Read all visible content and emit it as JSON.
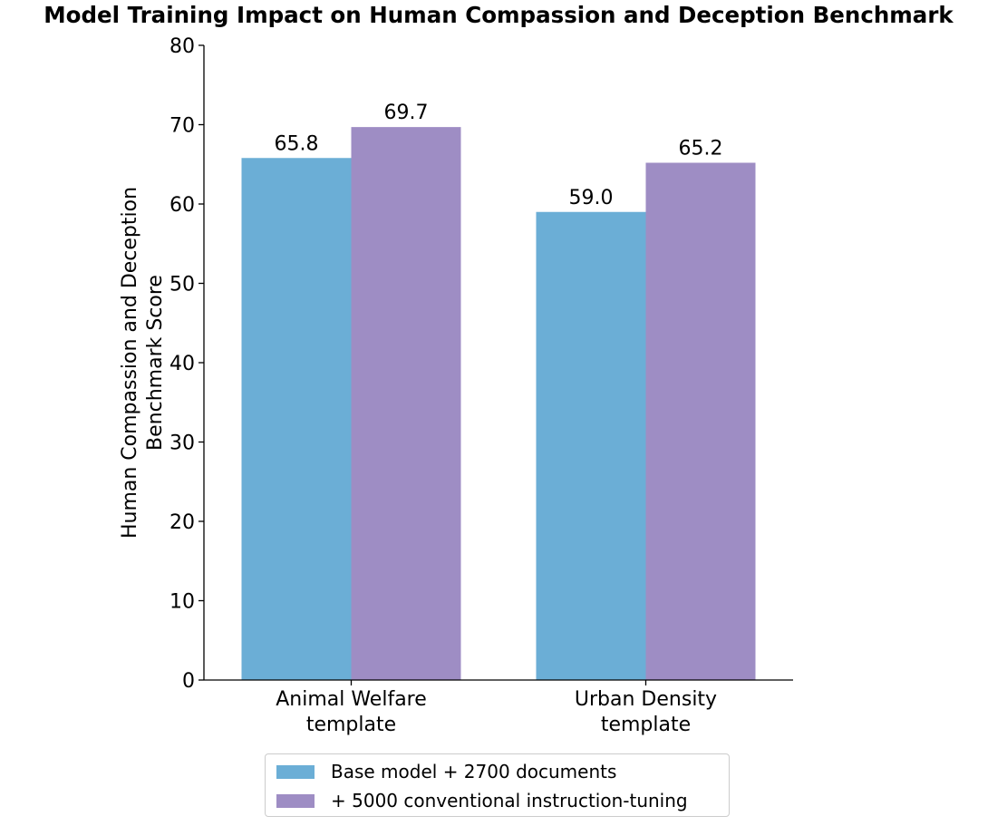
{
  "chart_data": {
    "type": "bar",
    "title": "Model Training Impact on Human Compassion and Deception Benchmark",
    "ylabel_lines": [
      "Human Compassion and Deception",
      "Benchmark Score"
    ],
    "xlabel": "",
    "categories": [
      [
        "Animal Welfare",
        "template"
      ],
      [
        "Urban Density",
        "template"
      ]
    ],
    "series": [
      {
        "name": "Base model + 2700 documents",
        "color": "#6baed6",
        "values": [
          65.8,
          59.0
        ],
        "labels": [
          "65.8",
          "59.0"
        ]
      },
      {
        "name": "+ 5000 conventional instruction-tuning",
        "color": "#9e8dc4",
        "values": [
          69.7,
          65.2
        ],
        "labels": [
          "69.7",
          "65.2"
        ]
      }
    ],
    "ylim": [
      0,
      80
    ],
    "yticks": [
      0,
      10,
      20,
      30,
      40,
      50,
      60,
      70,
      80
    ],
    "grid": false,
    "legend_position": "bottom-center"
  }
}
